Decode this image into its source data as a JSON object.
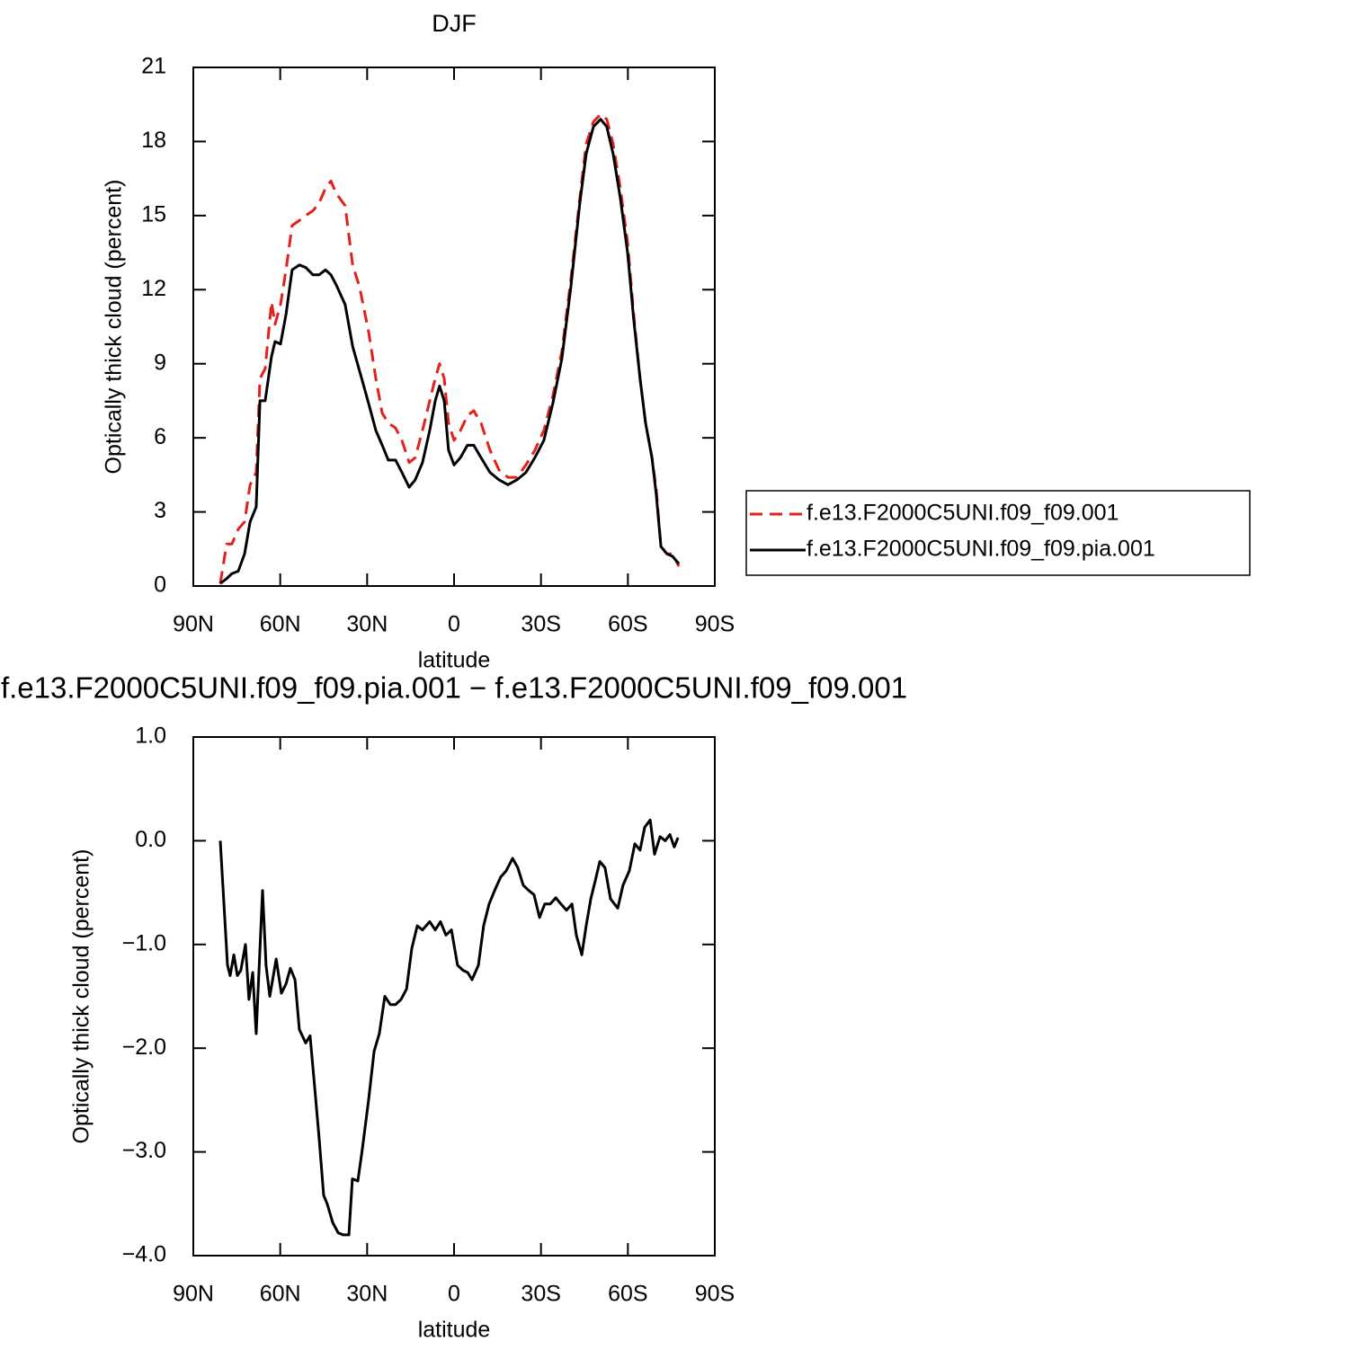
{
  "chart_data": [
    {
      "type": "line",
      "title": "DJF",
      "xlabel": "latitude",
      "ylabel": "Optically thick cloud (percent)",
      "x": [
        80.7,
        78.5,
        76.7,
        74.5,
        72.3,
        70.4,
        68.3,
        67.0,
        65.2,
        63.0,
        61.8,
        59.9,
        58.0,
        55.9,
        53.4,
        51.2,
        48.7,
        46.6,
        44.4,
        42.5,
        40.7,
        37.6,
        35.0,
        32.6,
        29.5,
        27.0,
        24.8,
        22.7,
        20.2,
        18.0,
        15.5,
        13.4,
        10.9,
        8.4,
        6.5,
        5.0,
        3.4,
        1.9,
        0,
        -2.2,
        -4.6,
        -6.8,
        -9.3,
        -12.4,
        -15.5,
        -18.6,
        -21.7,
        -24.8,
        -27.9,
        -31.0,
        -34.1,
        -37.2,
        -40.3,
        -43.4,
        -45.6,
        -48.1,
        -50.6,
        -52.7,
        -54.9,
        -57.4,
        -59.9,
        -62.0,
        -64.2,
        -66.1,
        -68.3,
        -69.8,
        -71.4,
        -73.5,
        -75.4,
        -77.6
      ],
      "series": [
        {
          "name": "f.e13.F2000C5UNI.f09_f09.001",
          "color": "#e3201b",
          "line_style": "dashed",
          "values": [
            0.1,
            1.7,
            1.7,
            2.3,
            2.6,
            4.1,
            4.6,
            8.4,
            8.8,
            11.5,
            10.6,
            11.4,
            12.8,
            14.6,
            14.8,
            15.0,
            15.2,
            15.5,
            16.1,
            16.4,
            15.9,
            15.4,
            13.0,
            12.1,
            10.3,
            8.4,
            7.0,
            6.6,
            6.4,
            5.9,
            5.0,
            5.2,
            6.3,
            7.5,
            8.4,
            9.0,
            8.4,
            6.6,
            5.9,
            6.3,
            6.9,
            7.1,
            6.6,
            5.5,
            4.7,
            4.4,
            4.4,
            4.9,
            5.5,
            6.3,
            7.7,
            9.5,
            12.4,
            15.7,
            17.9,
            18.8,
            19.1,
            18.9,
            17.9,
            16.1,
            13.9,
            11.0,
            8.4,
            6.6,
            5.2,
            3.9,
            1.6,
            1.3,
            1.3,
            0.8
          ]
        },
        {
          "name": "f.e13.F2000C5UNI.f09_f09.pia.001",
          "color": "#000000",
          "line_style": "solid",
          "values": [
            0.1,
            0.3,
            0.5,
            0.6,
            1.3,
            2.6,
            3.2,
            7.5,
            7.5,
            9.3,
            9.9,
            9.8,
            11.0,
            12.8,
            13.0,
            12.9,
            12.6,
            12.6,
            12.8,
            12.6,
            12.2,
            11.4,
            9.7,
            8.7,
            7.4,
            6.3,
            5.7,
            5.1,
            5.1,
            4.6,
            4.0,
            4.3,
            5.0,
            6.3,
            7.5,
            8.1,
            7.5,
            5.5,
            4.9,
            5.2,
            5.7,
            5.7,
            5.2,
            4.6,
            4.3,
            4.1,
            4.3,
            4.6,
            5.2,
            5.9,
            7.4,
            9.2,
            12.1,
            15.5,
            17.5,
            18.6,
            18.9,
            18.6,
            17.5,
            15.7,
            13.5,
            10.8,
            8.4,
            6.6,
            5.2,
            3.7,
            1.6,
            1.3,
            1.2,
            0.9
          ]
        }
      ],
      "xlim": [
        90,
        -90
      ],
      "xticks": [
        {
          "value": 90,
          "label": "90N"
        },
        {
          "value": 60,
          "label": "60N"
        },
        {
          "value": 30,
          "label": "30N"
        },
        0,
        {
          "value": -30,
          "label": "30S"
        },
        {
          "value": -60,
          "label": "60S"
        },
        {
          "value": -90,
          "label": "90S"
        }
      ],
      "ylim": [
        0,
        21
      ],
      "yticks": [
        0,
        3,
        6,
        9,
        12,
        15,
        18,
        21
      ],
      "grid": false,
      "legend": "right"
    },
    {
      "type": "line",
      "title": "f.e13.F2000C5UNI.f09_f09.pia.001 − f.e13.F2000C5UNI.f09_f09.001",
      "xlabel": "latitude",
      "ylabel": "Optically thick cloud (percent)",
      "x": [
        80.7,
        78.2,
        77.3,
        76.0,
        74.8,
        73.6,
        72.0,
        70.8,
        69.5,
        68.3,
        66.1,
        64.9,
        63.6,
        61.4,
        59.6,
        58.0,
        56.5,
        54.9,
        53.4,
        51.2,
        49.7,
        48.1,
        46.6,
        45.0,
        43.8,
        41.9,
        40.0,
        38.2,
        36.3,
        35.1,
        33.2,
        31.7,
        29.5,
        27.6,
        25.8,
        23.9,
        22.0,
        20.2,
        18.3,
        16.4,
        14.6,
        12.7,
        10.9,
        8.4,
        6.5,
        4.7,
        2.8,
        0.9,
        -1.2,
        -3.1,
        -4.7,
        -6.2,
        -8.4,
        -10.2,
        -12.1,
        -14.0,
        -16.1,
        -18.0,
        -20.2,
        -22.0,
        -23.9,
        -25.8,
        -27.6,
        -29.5,
        -31.3,
        -33.2,
        -35.1,
        -36.9,
        -38.8,
        -40.7,
        -42.2,
        -44.1,
        -45.6,
        -47.2,
        -48.7,
        -50.3,
        -52.1,
        -54.0,
        -56.5,
        -58.3,
        -60.5,
        -62.4,
        -64.2,
        -65.8,
        -67.7,
        -69.2,
        -71.1,
        -72.9,
        -74.5,
        -76.0,
        -77.3
      ],
      "series": [
        {
          "color": "#000000",
          "line_style": "solid",
          "values": [
            0,
            -1.2,
            -1.3,
            -1.1,
            -1.3,
            -1.25,
            -1.0,
            -1.53,
            -1.27,
            -1.86,
            -0.48,
            -1.2,
            -1.5,
            -1.14,
            -1.47,
            -1.38,
            -1.23,
            -1.34,
            -1.82,
            -1.95,
            -1.88,
            -2.38,
            -2.86,
            -3.42,
            -3.5,
            -3.68,
            -3.78,
            -3.8,
            -3.8,
            -3.26,
            -3.28,
            -2.98,
            -2.5,
            -2.03,
            -1.86,
            -1.5,
            -1.58,
            -1.58,
            -1.53,
            -1.43,
            -1.04,
            -0.82,
            -0.86,
            -0.78,
            -0.86,
            -0.78,
            -0.91,
            -0.86,
            -1.2,
            -1.25,
            -1.27,
            -1.34,
            -1.2,
            -0.82,
            -0.61,
            -0.48,
            -0.35,
            -0.29,
            -0.17,
            -0.26,
            -0.43,
            -0.48,
            -0.52,
            -0.74,
            -0.61,
            -0.61,
            -0.55,
            -0.61,
            -0.67,
            -0.61,
            -0.91,
            -1.1,
            -0.82,
            -0.56,
            -0.39,
            -0.2,
            -0.26,
            -0.56,
            -0.65,
            -0.43,
            -0.29,
            -0.03,
            -0.09,
            0.13,
            0.2,
            -0.13,
            0.04,
            0,
            0.06,
            -0.06,
            0.03
          ]
        }
      ],
      "xlim": [
        90,
        -90
      ],
      "xticks": [
        {
          "value": 90,
          "label": "90N"
        },
        {
          "value": 60,
          "label": "60N"
        },
        {
          "value": 30,
          "label": "30N"
        },
        0,
        {
          "value": -30,
          "label": "30S"
        },
        {
          "value": -60,
          "label": "60S"
        },
        {
          "value": -90,
          "label": "90S"
        }
      ],
      "ylim": [
        -4,
        1
      ],
      "yticks": [
        {
          "value": -4,
          "label": "−4.0"
        },
        {
          "value": -3,
          "label": "−3.0"
        },
        {
          "value": -2,
          "label": "−2.0"
        },
        {
          "value": -1,
          "label": "−1.0"
        },
        {
          "value": 0,
          "label": "0.0"
        },
        {
          "value": 1,
          "label": "1.0"
        }
      ],
      "grid": false
    }
  ]
}
